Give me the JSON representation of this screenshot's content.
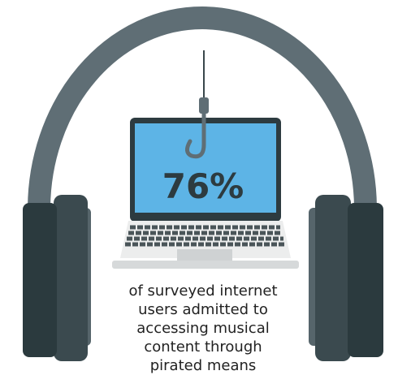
{
  "stat": "76%",
  "caption": [
    "of surveyed internet",
    "users admitted to",
    "accessing musical",
    "content through",
    "pirated means"
  ]
}
